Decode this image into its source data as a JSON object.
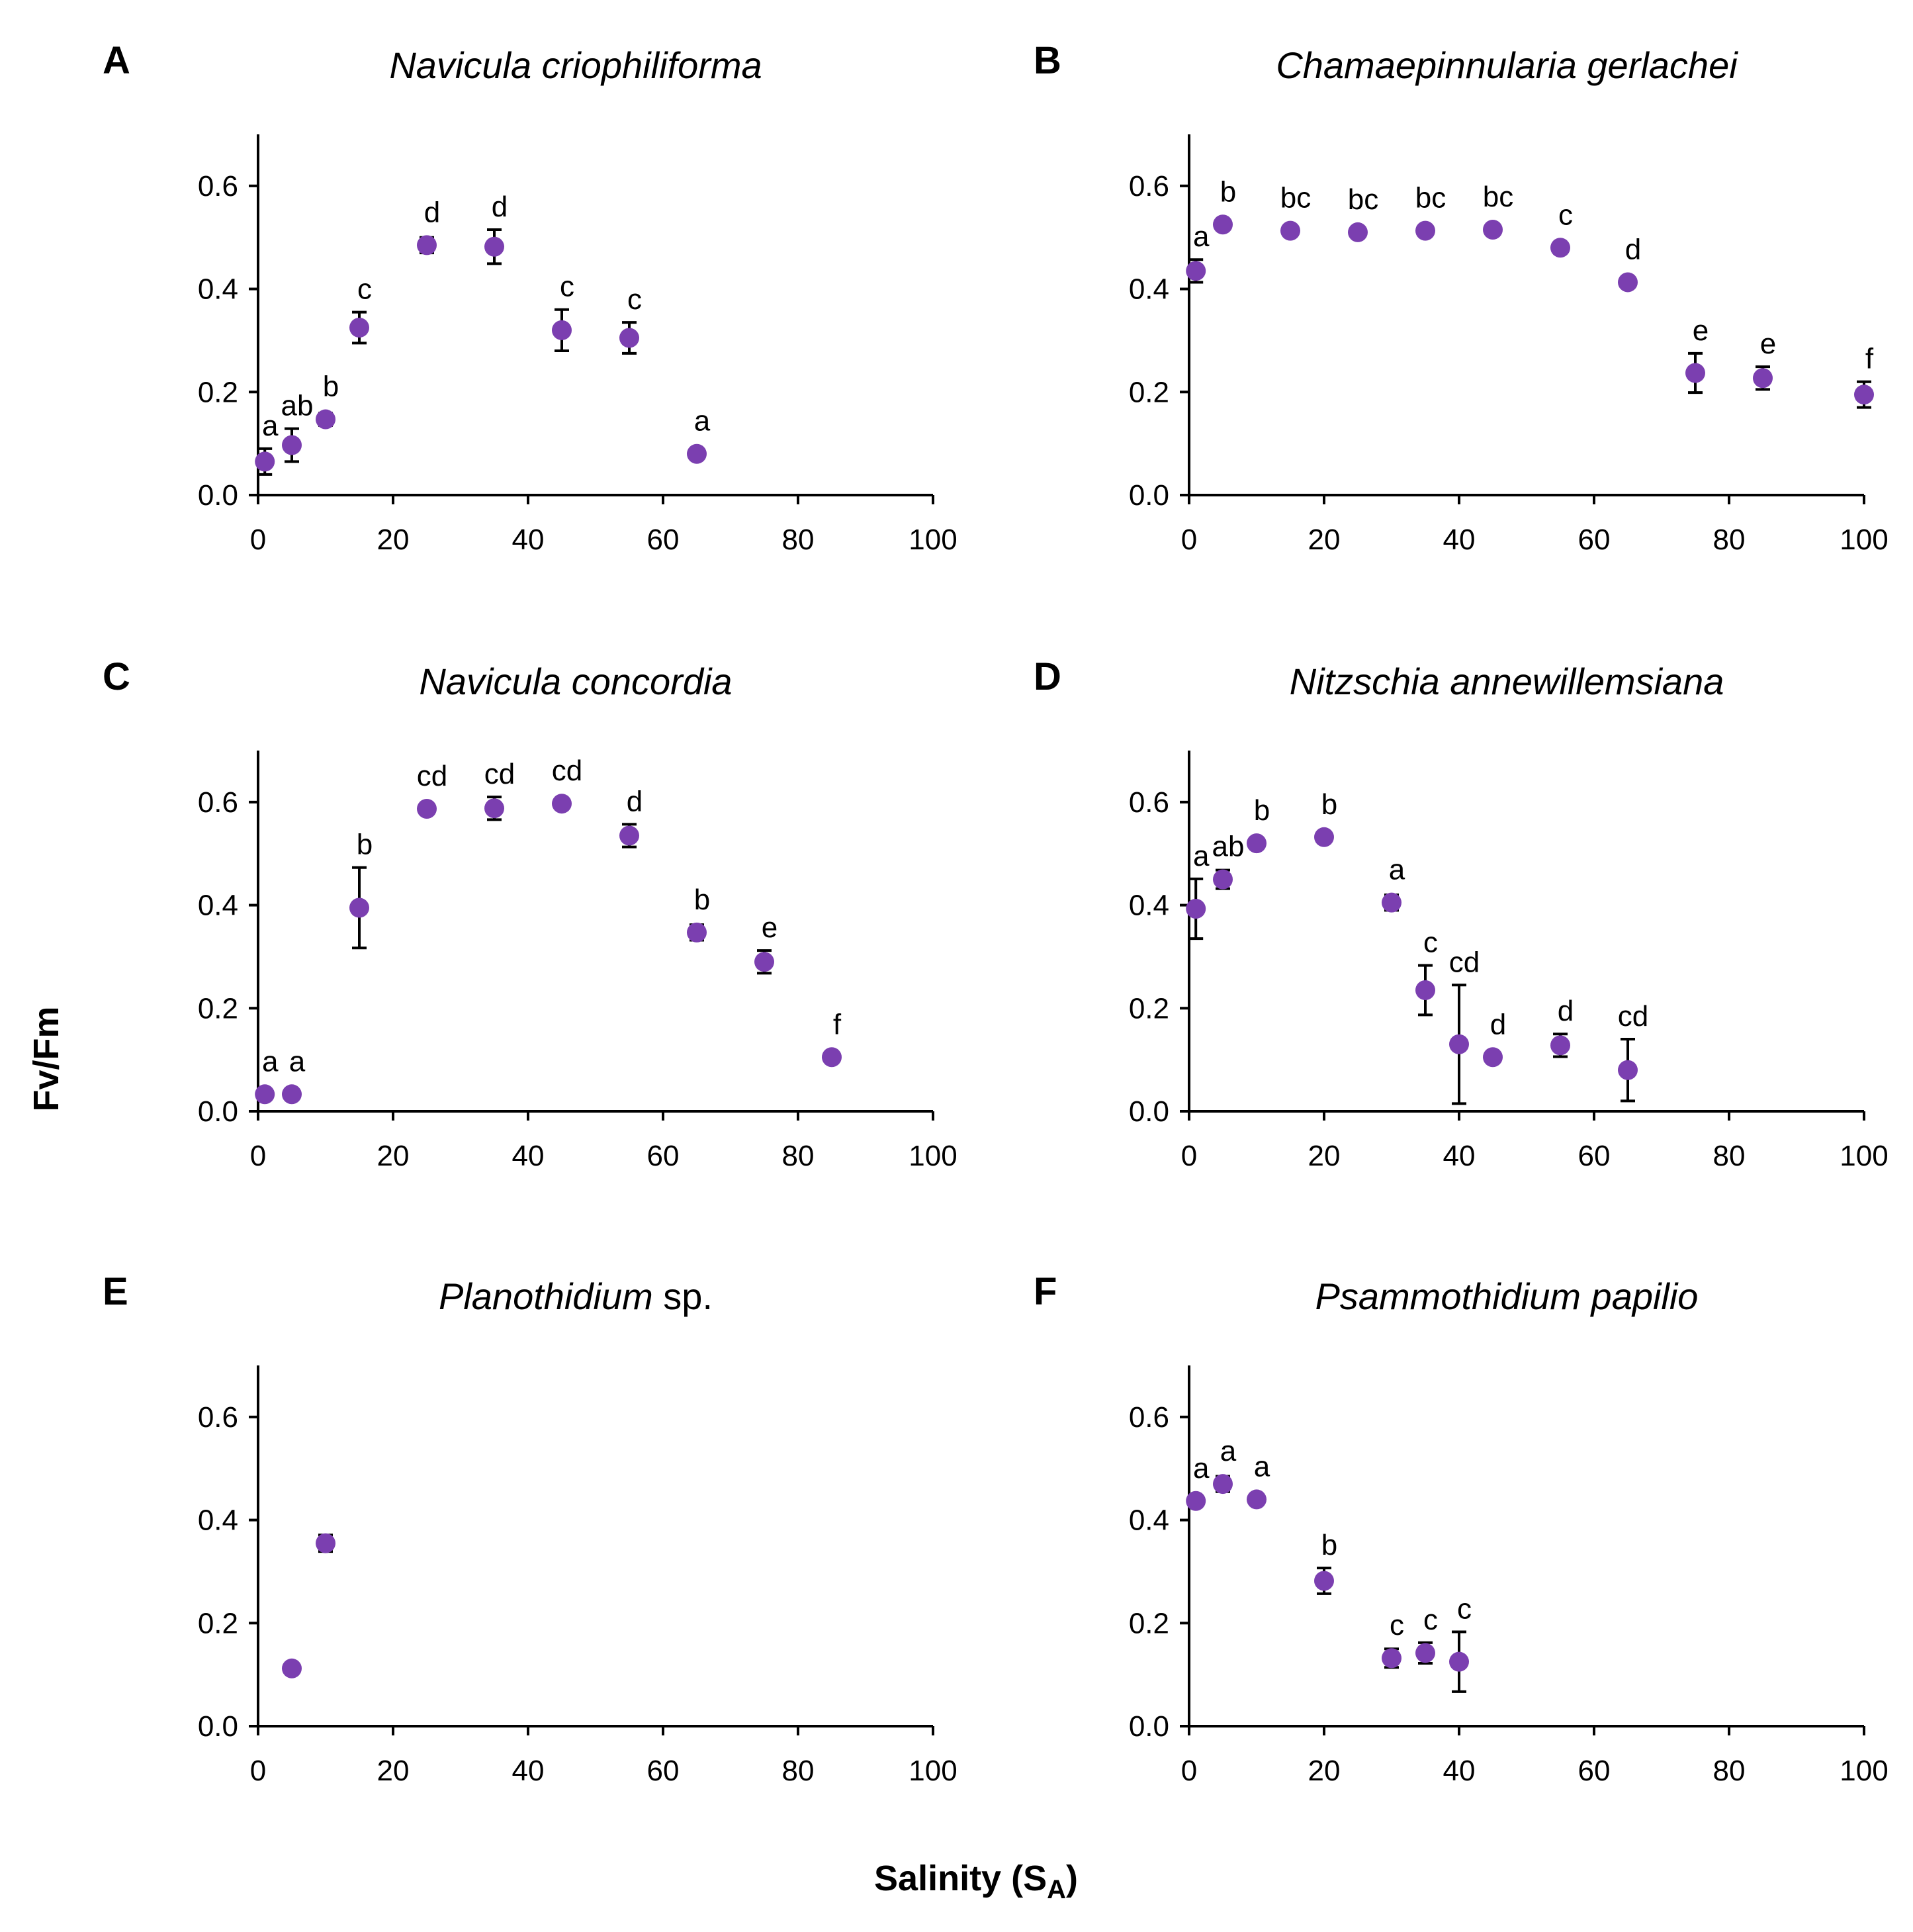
{
  "figure": {
    "ylabel": "Fv/Fm",
    "xlabel_main": "Salinity (S",
    "xlabel_sub": "A",
    "xlabel_close": ")",
    "point_color": "#7B3FB0"
  },
  "chart_data": [
    {
      "type": "scatter",
      "panel": "A",
      "title": "Navicula criophiliforma",
      "title_suffix": "",
      "xlim": [
        0,
        100
      ],
      "ylim": [
        0,
        0.7
      ],
      "xticks": [
        "0",
        "20",
        "40",
        "60",
        "80",
        "100"
      ],
      "yticks": [
        "0.0",
        "0.2",
        "0.4",
        "0.6"
      ],
      "points": [
        {
          "x": 1,
          "y": 0.065,
          "err": 0.025,
          "label": "a"
        },
        {
          "x": 5,
          "y": 0.097,
          "err": 0.032,
          "label": "ab"
        },
        {
          "x": 10,
          "y": 0.147,
          "err": 0.012,
          "label": "b"
        },
        {
          "x": 15,
          "y": 0.325,
          "err": 0.03,
          "label": "c"
        },
        {
          "x": 25,
          "y": 0.485,
          "err": 0.015,
          "label": "d"
        },
        {
          "x": 35,
          "y": 0.482,
          "err": 0.033,
          "label": "d"
        },
        {
          "x": 45,
          "y": 0.32,
          "err": 0.04,
          "label": "c"
        },
        {
          "x": 55,
          "y": 0.305,
          "err": 0.03,
          "label": "c"
        },
        {
          "x": 65,
          "y": 0.08,
          "err": 0.005,
          "label": "a"
        }
      ]
    },
    {
      "type": "scatter",
      "panel": "B",
      "title": "Chamaepinnularia gerlachei",
      "title_suffix": "",
      "xlim": [
        0,
        100
      ],
      "ylim": [
        0,
        0.7
      ],
      "xticks": [
        "0",
        "20",
        "40",
        "60",
        "80",
        "100"
      ],
      "yticks": [
        "0.0",
        "0.2",
        "0.4",
        "0.6"
      ],
      "points": [
        {
          "x": 1,
          "y": 0.435,
          "err": 0.022,
          "label": "a"
        },
        {
          "x": 5,
          "y": 0.525,
          "err": 0.008,
          "label": "b"
        },
        {
          "x": 15,
          "y": 0.513,
          "err": 0.006,
          "label": "bc"
        },
        {
          "x": 25,
          "y": 0.51,
          "err": 0.006,
          "label": "bc"
        },
        {
          "x": 35,
          "y": 0.513,
          "err": 0.006,
          "label": "bc"
        },
        {
          "x": 45,
          "y": 0.515,
          "err": 0.006,
          "label": "bc"
        },
        {
          "x": 55,
          "y": 0.48,
          "err": 0.008,
          "label": "c"
        },
        {
          "x": 65,
          "y": 0.413,
          "err": 0.008,
          "label": "d"
        },
        {
          "x": 75,
          "y": 0.237,
          "err": 0.038,
          "label": "e"
        },
        {
          "x": 85,
          "y": 0.227,
          "err": 0.022,
          "label": "e"
        },
        {
          "x": 100,
          "y": 0.195,
          "err": 0.025,
          "label": "f"
        }
      ]
    },
    {
      "type": "scatter",
      "panel": "C",
      "title": "Navicula concordia",
      "title_suffix": "",
      "xlim": [
        0,
        100
      ],
      "ylim": [
        0,
        0.7
      ],
      "xticks": [
        "0",
        "20",
        "40",
        "60",
        "80",
        "100"
      ],
      "yticks": [
        "0.0",
        "0.2",
        "0.4",
        "0.6"
      ],
      "points": [
        {
          "x": 1,
          "y": 0.033,
          "err": 0.005,
          "label": "a"
        },
        {
          "x": 5,
          "y": 0.033,
          "err": 0.005,
          "label": "a"
        },
        {
          "x": 15,
          "y": 0.395,
          "err": 0.078,
          "label": "b"
        },
        {
          "x": 25,
          "y": 0.587,
          "err": 0.008,
          "label": "cd"
        },
        {
          "x": 35,
          "y": 0.588,
          "err": 0.022,
          "label": "cd"
        },
        {
          "x": 45,
          "y": 0.597,
          "err": 0.008,
          "label": "cd"
        },
        {
          "x": 55,
          "y": 0.535,
          "err": 0.022,
          "label": "d"
        },
        {
          "x": 65,
          "y": 0.347,
          "err": 0.015,
          "label": "b"
        },
        {
          "x": 75,
          "y": 0.29,
          "err": 0.022,
          "label": "e"
        },
        {
          "x": 85,
          "y": 0.105,
          "err": 0.005,
          "label": "f"
        }
      ]
    },
    {
      "type": "scatter",
      "panel": "D",
      "title": "Nitzschia annewillemsiana",
      "title_suffix": "",
      "xlim": [
        0,
        100
      ],
      "ylim": [
        0,
        0.7
      ],
      "xticks": [
        "0",
        "20",
        "40",
        "60",
        "80",
        "100"
      ],
      "yticks": [
        "0.0",
        "0.2",
        "0.4",
        "0.6"
      ],
      "points": [
        {
          "x": 1,
          "y": 0.393,
          "err": 0.058,
          "label": "a"
        },
        {
          "x": 5,
          "y": 0.45,
          "err": 0.018,
          "label": "ab"
        },
        {
          "x": 10,
          "y": 0.52,
          "err": 0.008,
          "label": "b"
        },
        {
          "x": 20,
          "y": 0.532,
          "err": 0.008,
          "label": "b"
        },
        {
          "x": 30,
          "y": 0.405,
          "err": 0.015,
          "label": "a"
        },
        {
          "x": 35,
          "y": 0.235,
          "err": 0.048,
          "label": "c"
        },
        {
          "x": 40,
          "y": 0.13,
          "err": 0.115,
          "label": "cd"
        },
        {
          "x": 45,
          "y": 0.105,
          "err": 0.005,
          "label": "d"
        },
        {
          "x": 55,
          "y": 0.128,
          "err": 0.022,
          "label": "d"
        },
        {
          "x": 65,
          "y": 0.08,
          "err": 0.06,
          "label": "cd"
        }
      ]
    },
    {
      "type": "scatter",
      "panel": "E",
      "title": "Planothidium",
      "title_suffix": " sp.",
      "xlim": [
        0,
        100
      ],
      "ylim": [
        0,
        0.7
      ],
      "xticks": [
        "0",
        "20",
        "40",
        "60",
        "80",
        "100"
      ],
      "yticks": [
        "0.0",
        "0.2",
        "0.4",
        "0.6"
      ],
      "points": [
        {
          "x": 5,
          "y": 0.112,
          "err": 0.004,
          "label": ""
        },
        {
          "x": 10,
          "y": 0.355,
          "err": 0.016,
          "label": ""
        }
      ]
    },
    {
      "type": "scatter",
      "panel": "F",
      "title": "Psammothidium papilio",
      "title_suffix": "",
      "xlim": [
        0,
        100
      ],
      "ylim": [
        0,
        0.7
      ],
      "xticks": [
        "0",
        "20",
        "40",
        "60",
        "80",
        "100"
      ],
      "yticks": [
        "0.0",
        "0.2",
        "0.4",
        "0.6"
      ],
      "points": [
        {
          "x": 1,
          "y": 0.437,
          "err": 0.01,
          "label": "a"
        },
        {
          "x": 5,
          "y": 0.47,
          "err": 0.015,
          "label": "a"
        },
        {
          "x": 10,
          "y": 0.44,
          "err": 0.01,
          "label": "a"
        },
        {
          "x": 20,
          "y": 0.282,
          "err": 0.025,
          "label": "b"
        },
        {
          "x": 30,
          "y": 0.132,
          "err": 0.018,
          "label": "c"
        },
        {
          "x": 35,
          "y": 0.142,
          "err": 0.02,
          "label": "c"
        },
        {
          "x": 40,
          "y": 0.125,
          "err": 0.058,
          "label": "c"
        }
      ]
    }
  ]
}
